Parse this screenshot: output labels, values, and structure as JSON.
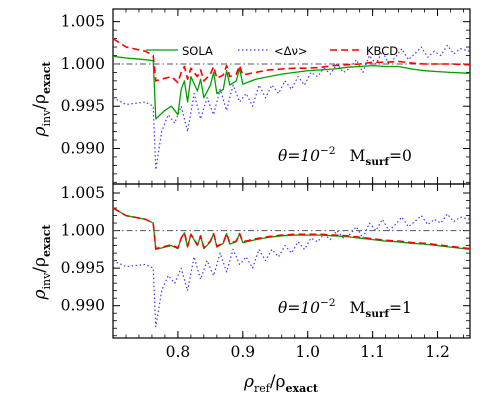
{
  "chart_data": [
    {
      "type": "line",
      "panel": "top",
      "annotation": "θ=10⁻²  M_surf=0",
      "annotation_parts": {
        "theta": "θ=10",
        "theta_exp": "−2",
        "m": "M",
        "m_sub": "surf",
        "m_val": "=0"
      },
      "ylabel": "ρ_inv/ρ_exact",
      "xlim": [
        0.7,
        1.25
      ],
      "ylim": [
        0.986,
        1.006
      ],
      "yticks": [
        "1.005",
        "1.000",
        "0.995",
        "0.990"
      ],
      "reference_line": 1.0,
      "legend_position": "top",
      "series": [
        {
          "name": "SOLA",
          "color": "#00a000",
          "style": "solid",
          "x": [
            0.7,
            0.72,
            0.75,
            0.762,
            0.766,
            0.78,
            0.79,
            0.8,
            0.805,
            0.81,
            0.815,
            0.82,
            0.83,
            0.835,
            0.84,
            0.85,
            0.855,
            0.86,
            0.87,
            0.875,
            0.88,
            0.89,
            0.895,
            0.9,
            0.92,
            0.94,
            0.96,
            0.98,
            1.0,
            1.02,
            1.04,
            1.06,
            1.08,
            1.1,
            1.12,
            1.14,
            1.16,
            1.18,
            1.2,
            1.22,
            1.25
          ],
          "y": [
            1.0009,
            1.0007,
            1.0005,
            1.0004,
            0.9935,
            0.9945,
            0.995,
            0.994,
            0.997,
            0.998,
            0.9955,
            0.9985,
            0.9968,
            0.9982,
            0.996,
            0.9975,
            0.999,
            0.9965,
            0.997,
            0.9992,
            0.9975,
            0.998,
            0.9995,
            0.9976,
            0.9982,
            0.9985,
            0.9988,
            0.999,
            0.9992,
            0.9993,
            0.9994,
            0.9996,
            0.9997,
            0.9998,
            0.9997,
            0.9997,
            0.9994,
            0.9992,
            0.9991,
            0.999,
            0.9989
          ]
        },
        {
          "name": "<Δν>",
          "color": "#3a3aff",
          "style": "dotted",
          "x": [
            0.7,
            0.72,
            0.75,
            0.762,
            0.766,
            0.775,
            0.785,
            0.795,
            0.805,
            0.815,
            0.825,
            0.835,
            0.845,
            0.855,
            0.865,
            0.875,
            0.885,
            0.895,
            0.905,
            0.915,
            0.925,
            0.935,
            0.945,
            0.955,
            0.965,
            0.975,
            0.985,
            0.995,
            1.005,
            1.015,
            1.025,
            1.035,
            1.045,
            1.055,
            1.065,
            1.075,
            1.085,
            1.095,
            1.105,
            1.115,
            1.125,
            1.135,
            1.145,
            1.155,
            1.165,
            1.175,
            1.185,
            1.195,
            1.205,
            1.215,
            1.225,
            1.235,
            1.25
          ],
          "y": [
            0.996,
            0.9952,
            0.9955,
            0.995,
            0.9875,
            0.992,
            0.994,
            0.993,
            0.995,
            0.992,
            0.9965,
            0.9935,
            0.996,
            0.994,
            0.997,
            0.9945,
            0.9975,
            0.9955,
            0.9965,
            0.995,
            0.9975,
            0.996,
            0.9975,
            0.9965,
            0.998,
            0.997,
            0.9985,
            0.9975,
            0.999,
            0.9985,
            0.9995,
            0.9988,
            1.0,
            0.999,
            0.9995,
            1.0005,
            0.999,
            1.001,
            1.0,
            1.0015,
            1.0,
            1.0008,
            1.0018,
            1.0005,
            1.0012,
            1.002,
            1.0008,
            1.0015,
            1.001,
            1.0022,
            1.0012,
            1.0018,
            1.0015
          ]
        },
        {
          "name": "KBCD",
          "color": "#ff0000",
          "style": "dashed",
          "x": [
            0.7,
            0.72,
            0.75,
            0.762,
            0.766,
            0.78,
            0.79,
            0.8,
            0.805,
            0.81,
            0.815,
            0.82,
            0.83,
            0.835,
            0.84,
            0.85,
            0.855,
            0.86,
            0.87,
            0.875,
            0.88,
            0.89,
            0.895,
            0.9,
            0.92,
            0.94,
            0.96,
            0.98,
            1.0,
            1.02,
            1.04,
            1.06,
            1.08,
            1.1,
            1.12,
            1.14,
            1.16,
            1.18,
            1.2,
            1.22,
            1.25
          ],
          "y": [
            1.003,
            1.002,
            1.0015,
            1.001,
            0.998,
            0.9983,
            0.9985,
            0.9978,
            0.999,
            0.9997,
            0.9982,
            0.9995,
            0.9985,
            0.9993,
            0.998,
            0.9988,
            0.9997,
            0.9983,
            0.9987,
            0.9998,
            0.9985,
            0.9988,
            0.9998,
            0.9987,
            0.999,
            0.9993,
            0.9994,
            0.9995,
            0.9995,
            0.9996,
            0.9998,
            0.9999,
            1.0,
            1.0002,
            1.0002,
            1.0003,
            1.0001,
            1.0,
            1.0,
            1.0,
            0.9999
          ]
        }
      ]
    },
    {
      "type": "line",
      "panel": "bottom",
      "annotation": "θ=10⁻²  M_surf=1",
      "annotation_parts": {
        "theta": "θ=10",
        "theta_exp": "−2",
        "m": "M",
        "m_sub": "surf",
        "m_val": "=1"
      },
      "ylabel": "ρ_inv/ρ_exact",
      "xlabel": "ρ_ref/ρ_exact",
      "xlim": [
        0.7,
        1.25
      ],
      "ylim": [
        0.986,
        1.006
      ],
      "yticks": [
        "1.005",
        "1.000",
        "0.995",
        "0.990"
      ],
      "xticks": [
        "0.8",
        "0.9",
        "1.0",
        "1.1",
        "1.2"
      ],
      "reference_line": 1.0,
      "series": [
        {
          "name": "SOLA",
          "color": "#00a000",
          "style": "solid",
          "x": [
            0.7,
            0.72,
            0.75,
            0.762,
            0.766,
            0.78,
            0.79,
            0.8,
            0.805,
            0.81,
            0.815,
            0.82,
            0.83,
            0.835,
            0.84,
            0.85,
            0.855,
            0.86,
            0.87,
            0.875,
            0.88,
            0.89,
            0.895,
            0.9,
            0.92,
            0.94,
            0.96,
            0.98,
            1.0,
            1.02,
            1.04,
            1.06,
            1.08,
            1.1,
            1.12,
            1.14,
            1.16,
            1.18,
            1.2,
            1.22,
            1.25
          ],
          "y": [
            1.003,
            1.002,
            1.0015,
            1.001,
            0.9975,
            0.9978,
            0.998,
            0.9976,
            0.999,
            0.9997,
            0.9978,
            0.9995,
            0.998,
            0.9993,
            0.9976,
            0.9985,
            0.9996,
            0.9978,
            0.9983,
            0.9996,
            0.9982,
            0.9985,
            0.9996,
            0.9984,
            0.9988,
            0.9991,
            0.9993,
            0.9994,
            0.9994,
            0.9994,
            0.9993,
            0.9992,
            0.999,
            0.9988,
            0.9986,
            0.9985,
            0.9983,
            0.9982,
            0.998,
            0.9978,
            0.9975
          ]
        },
        {
          "name": "<Δν>",
          "color": "#3a3aff",
          "style": "dotted",
          "x": [
            0.7,
            0.72,
            0.75,
            0.762,
            0.766,
            0.775,
            0.785,
            0.795,
            0.805,
            0.815,
            0.825,
            0.835,
            0.845,
            0.855,
            0.865,
            0.875,
            0.885,
            0.895,
            0.905,
            0.915,
            0.925,
            0.935,
            0.945,
            0.955,
            0.965,
            0.975,
            0.985,
            0.995,
            1.005,
            1.015,
            1.025,
            1.035,
            1.045,
            1.055,
            1.065,
            1.075,
            1.085,
            1.095,
            1.105,
            1.115,
            1.125,
            1.135,
            1.145,
            1.155,
            1.165,
            1.175,
            1.185,
            1.195,
            1.205,
            1.215,
            1.225,
            1.235,
            1.25
          ],
          "y": [
            0.996,
            0.9952,
            0.9955,
            0.995,
            0.9872,
            0.992,
            0.994,
            0.993,
            0.995,
            0.992,
            0.9965,
            0.9935,
            0.996,
            0.994,
            0.997,
            0.9945,
            0.9975,
            0.9955,
            0.9965,
            0.995,
            0.9975,
            0.996,
            0.9975,
            0.9965,
            0.998,
            0.997,
            0.9985,
            0.9975,
            0.999,
            0.9985,
            0.9995,
            0.9988,
            1.0,
            0.999,
            0.9995,
            1.0005,
            0.999,
            1.001,
            1.0,
            1.0015,
            1.0,
            1.0008,
            1.0018,
            1.0005,
            1.0012,
            1.002,
            1.0008,
            1.0015,
            1.001,
            1.0022,
            1.0012,
            1.0018,
            1.0015
          ]
        },
        {
          "name": "KBCD",
          "color": "#ff0000",
          "style": "dashed",
          "x": [
            0.7,
            0.72,
            0.75,
            0.762,
            0.766,
            0.78,
            0.79,
            0.8,
            0.805,
            0.81,
            0.815,
            0.82,
            0.83,
            0.835,
            0.84,
            0.85,
            0.855,
            0.86,
            0.87,
            0.875,
            0.88,
            0.89,
            0.895,
            0.9,
            0.92,
            0.94,
            0.96,
            0.98,
            1.0,
            1.02,
            1.04,
            1.06,
            1.08,
            1.1,
            1.12,
            1.14,
            1.16,
            1.18,
            1.2,
            1.22,
            1.25
          ],
          "y": [
            1.003,
            1.002,
            1.0015,
            1.001,
            0.9976,
            0.9979,
            0.9981,
            0.9977,
            0.999,
            0.9997,
            0.9979,
            0.9995,
            0.9981,
            0.9993,
            0.9977,
            0.9986,
            0.9996,
            0.9979,
            0.9984,
            0.9996,
            0.9983,
            0.9986,
            0.9996,
            0.9985,
            0.9989,
            0.9992,
            0.9994,
            0.9995,
            0.9995,
            0.9995,
            0.9994,
            0.9993,
            0.9991,
            0.9989,
            0.9987,
            0.9986,
            0.9984,
            0.9983,
            0.9981,
            0.9979,
            0.9976
          ]
        }
      ]
    }
  ],
  "legend": {
    "items": [
      {
        "label": "SOLA",
        "color": "#00a000",
        "style": "solid"
      },
      {
        "label": "<Δν>",
        "color": "#3a3aff",
        "style": "dotted"
      },
      {
        "label": "KBCD",
        "color": "#ff0000",
        "style": "dashed"
      }
    ]
  },
  "labels": {
    "ylabel_main": "ρ",
    "ylabel_sub": "inv",
    "ylabel_slash": "/ρ",
    "ylabel_sub2": "exact",
    "xlabel_main": "ρ",
    "xlabel_sub": "ref",
    "xlabel_slash": "/ρ",
    "xlabel_sub2": "exact"
  }
}
